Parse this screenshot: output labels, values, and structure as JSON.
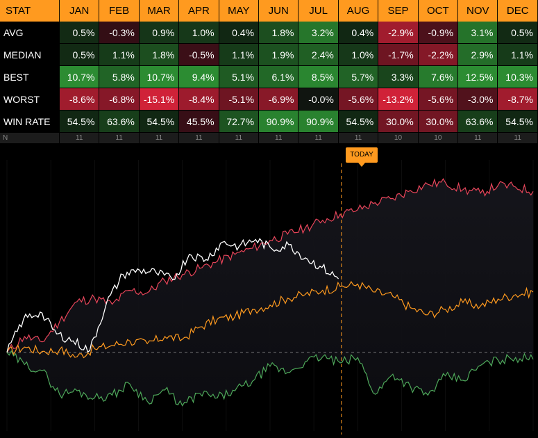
{
  "chart_data": [
    {
      "type": "table",
      "header": [
        "STAT",
        "JAN",
        "FEB",
        "MAR",
        "APR",
        "MAY",
        "JUN",
        "JUL",
        "AUG",
        "SEP",
        "OCT",
        "NOV",
        "DEC"
      ],
      "rows": [
        {
          "label": "AVG",
          "values": [
            "0.5%",
            "-0.3%",
            "0.9%",
            "1.0%",
            "0.4%",
            "1.8%",
            "3.2%",
            "0.4%",
            "-2.9%",
            "-0.9%",
            "3.1%",
            "0.5%"
          ],
          "nums": [
            0.5,
            -0.3,
            0.9,
            1.0,
            0.4,
            1.8,
            3.2,
            0.4,
            -2.9,
            -0.9,
            3.1,
            0.5
          ],
          "scale": 4
        },
        {
          "label": "MEDIAN",
          "values": [
            "0.5%",
            "1.1%",
            "1.8%",
            "-0.5%",
            "1.1%",
            "1.9%",
            "2.4%",
            "1.0%",
            "-1.7%",
            "-2.2%",
            "2.9%",
            "1.1%"
          ],
          "nums": [
            0.5,
            1.1,
            1.8,
            -0.5,
            1.1,
            1.9,
            2.4,
            1.0,
            -1.7,
            -2.2,
            2.9,
            1.1
          ],
          "scale": 4
        },
        {
          "label": "BEST",
          "values": [
            "10.7%",
            "5.8%",
            "10.7%",
            "9.4%",
            "5.1%",
            "6.1%",
            "8.5%",
            "5.7%",
            "3.3%",
            "7.6%",
            "12.5%",
            "10.3%"
          ],
          "nums": [
            10.7,
            5.8,
            10.7,
            9.4,
            5.1,
            6.1,
            8.5,
            5.7,
            3.3,
            7.6,
            12.5,
            10.3
          ],
          "scale": 9
        },
        {
          "label": "WORST",
          "values": [
            "-8.6%",
            "-6.8%",
            "-15.1%",
            "-8.4%",
            "-5.1%",
            "-6.9%",
            "-0.0%",
            "-5.6%",
            "-13.2%",
            "-5.6%",
            "-3.0%",
            "-8.7%"
          ],
          "nums": [
            -8.6,
            -6.8,
            -15.1,
            -8.4,
            -5.1,
            -6.9,
            0,
            -5.6,
            -13.2,
            -5.6,
            -3.0,
            -8.7
          ],
          "scale": 12
        },
        {
          "label": "WIN RATE",
          "values": [
            "54.5%",
            "63.6%",
            "54.5%",
            "45.5%",
            "72.7%",
            "90.9%",
            "90.9%",
            "54.5%",
            "30.0%",
            "30.0%",
            "63.6%",
            "54.5%"
          ],
          "nums": [
            4.5,
            13.6,
            4.5,
            -4.5,
            22.7,
            40.9,
            40.9,
            4.5,
            -20,
            -20,
            13.6,
            4.5
          ],
          "scale": 45
        }
      ],
      "n_row": {
        "label": "N",
        "values": [
          "11",
          "11",
          "11",
          "11",
          "11",
          "11",
          "11",
          "11",
          "10",
          "10",
          "11",
          "11"
        ]
      }
    },
    {
      "type": "line",
      "annotation": "TODAY",
      "x": {
        "start": 0,
        "end": 365,
        "today": 232
      },
      "series": [
        {
          "color": "#e8455a",
          "values": [
            0,
            1.8,
            1.2,
            3.5,
            5.8,
            6.2,
            5.5,
            7.1,
            6.8,
            8.2,
            8.9,
            9.6,
            10.4,
            11.2,
            11.9,
            12.8,
            13.5,
            14.2,
            15.1,
            15.8,
            16.3,
            17.1,
            17.6,
            18.5,
            19.2,
            19.4,
            18.6,
            18.2,
            19.1,
            18.9,
            18.4
          ]
        },
        {
          "color": "#ff9a1f",
          "values": [
            0,
            0.6,
            0.1,
            0.3,
            -0.5,
            0.4,
            0.8,
            1.3,
            1.0,
            1.8,
            1.5,
            2.9,
            3.8,
            4.1,
            4.9,
            5.4,
            6.2,
            6.6,
            7.1,
            7.5,
            7.8,
            6.9,
            6.4,
            5.1,
            4.3,
            4.9,
            5.7,
            5.3,
            6.1,
            6.6,
            6.9
          ]
        },
        {
          "color": "#4ea85a",
          "values": [
            0,
            -1.4,
            -2.1,
            -4.8,
            -4.4,
            -5.2,
            -4.9,
            -3.6,
            -5.6,
            -4.3,
            -6.1,
            -4.7,
            -5.2,
            -4.4,
            -3.3,
            -1.6,
            -2.3,
            -1.1,
            -0.5,
            -1.2,
            -0.6,
            -4.8,
            -2.5,
            -3.9,
            -4.9,
            -2.7,
            -3.2,
            -1.5,
            -0.9,
            -0.6,
            -0.8
          ]
        },
        {
          "color": "#ffffff",
          "values": [
            0,
            3.8,
            4.6,
            2.1,
            1.3,
            0.2,
            5.6,
            8.9,
            9.4,
            9.1,
            8.3,
            11.2,
            10.6,
            12.6,
            12.1,
            12.9,
            11.8,
            12.3,
            10.8,
            9.7,
            8.4
          ]
        }
      ]
    }
  ]
}
